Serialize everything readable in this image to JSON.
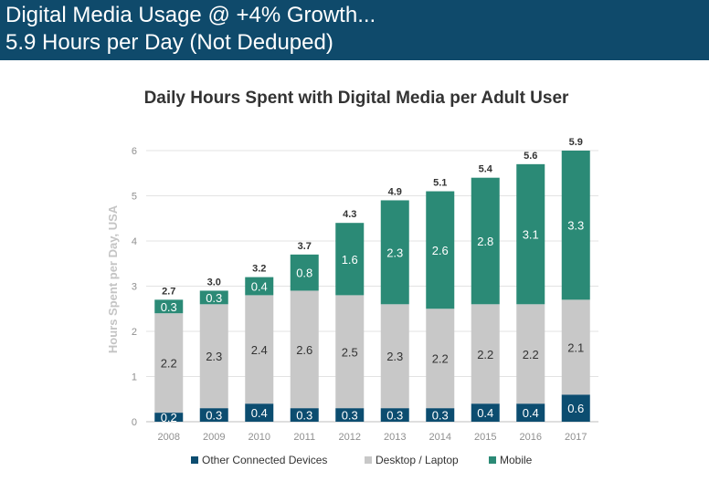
{
  "header": {
    "title_line1": "Digital Media Usage @ +4% Growth...",
    "title_line2": "5.9 Hours per Day (Not Deduped)",
    "background": "#0f4a6b"
  },
  "chart_data": {
    "type": "bar",
    "stacked": true,
    "title": "Daily Hours Spent with Digital Media per Adult User",
    "xlabel": "",
    "ylabel": "Hours Spent per Day, USA",
    "ylim": [
      0,
      6
    ],
    "yticks": [
      0,
      1,
      2,
      3,
      4,
      5,
      6
    ],
    "grid": true,
    "legend_position": "bottom",
    "categories": [
      "2008",
      "2009",
      "2010",
      "2011",
      "2012",
      "2013",
      "2014",
      "2015",
      "2016",
      "2017"
    ],
    "totals": [
      "2.7",
      "3.0",
      "3.2",
      "3.7",
      "4.3",
      "4.9",
      "5.1",
      "5.4",
      "5.6",
      "5.9"
    ],
    "series": [
      {
        "name": "Other Connected Devices",
        "color": "#0c4d70",
        "label_color": "#ffffff",
        "values": [
          0.2,
          0.3,
          0.4,
          0.3,
          0.3,
          0.3,
          0.3,
          0.4,
          0.4,
          0.6
        ],
        "labels": [
          "0.2",
          "0.3",
          "0.4",
          "0.3",
          "0.3",
          "0.3",
          "0.3",
          "0.4",
          "0.4",
          "0.6"
        ]
      },
      {
        "name": "Desktop / Laptop",
        "color": "#c8c8c8",
        "label_color": "#333333",
        "values": [
          2.2,
          2.3,
          2.4,
          2.6,
          2.5,
          2.3,
          2.2,
          2.2,
          2.2,
          2.1
        ],
        "labels": [
          "2.2",
          "2.3",
          "2.4",
          "2.6",
          "2.5",
          "2.3",
          "2.2",
          "2.2",
          "2.2",
          "2.1"
        ]
      },
      {
        "name": "Mobile",
        "color": "#2b8a76",
        "label_color": "#ffffff",
        "values": [
          0.3,
          0.3,
          0.4,
          0.8,
          1.6,
          2.3,
          2.6,
          2.8,
          3.1,
          3.3
        ],
        "labels": [
          "0.3",
          "0.3",
          "0.4",
          "0.8",
          "1.6",
          "2.3",
          "2.6",
          "2.8",
          "3.1",
          "3.3"
        ]
      }
    ]
  }
}
